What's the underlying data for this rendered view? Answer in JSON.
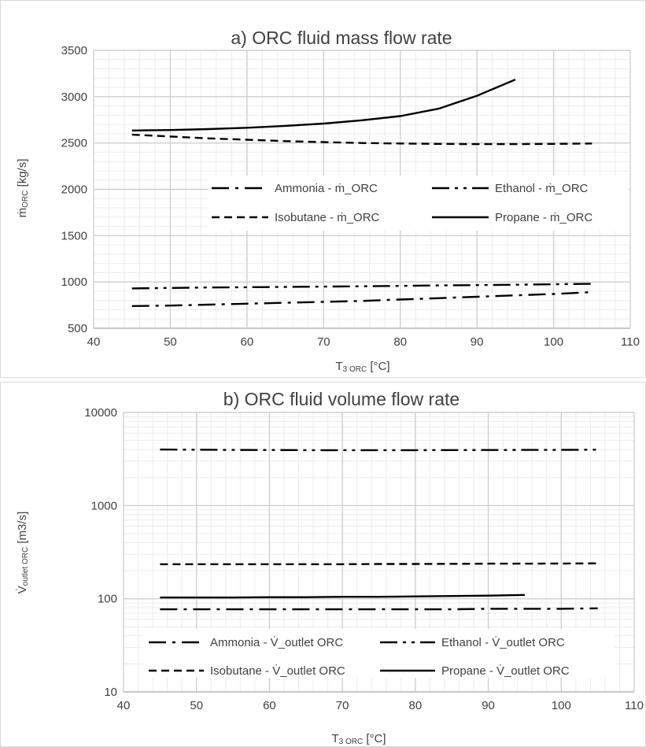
{
  "chart_data": [
    {
      "type": "line",
      "title": "a) ORC fluid mass flow rate",
      "xlabel": "T3 ORC [°C]",
      "xlabel_main": "T",
      "xlabel_sub": "3 ORC",
      "xlabel_unit": " [°C]",
      "ylabel": "ṁORC [kg/s]",
      "ylabel_main": "ṁ",
      "ylabel_sub": "ORC",
      "ylabel_unit": " [kg/s]",
      "xlim": [
        40,
        110
      ],
      "ylim": [
        500,
        3500
      ],
      "yscale": "linear",
      "x_ticks": [
        40,
        50,
        60,
        70,
        80,
        90,
        100,
        110
      ],
      "y_ticks": [
        500,
        1000,
        1500,
        2000,
        2500,
        3000,
        3500
      ],
      "grid": true,
      "legend_position": "middle",
      "series": [
        {
          "name": "Ammonia - ṁ_ORC",
          "style": "dash-dot",
          "x": [
            45,
            50,
            55,
            60,
            65,
            70,
            75,
            80,
            85,
            90,
            95,
            100,
            105
          ],
          "y": [
            740,
            745,
            755,
            765,
            775,
            785,
            795,
            810,
            825,
            840,
            855,
            870,
            890
          ]
        },
        {
          "name": "Ethanol - ṁ_ORC",
          "style": "dash-dot-dot",
          "x": [
            45,
            50,
            55,
            60,
            65,
            70,
            75,
            80,
            85,
            90,
            95,
            100,
            105
          ],
          "y": [
            930,
            935,
            940,
            943,
            946,
            950,
            953,
            957,
            962,
            966,
            970,
            975,
            980
          ]
        },
        {
          "name": "Isobutane - ṁ_ORC",
          "style": "dash",
          "x": [
            45,
            50,
            55,
            60,
            65,
            70,
            75,
            80,
            85,
            90,
            95,
            100,
            105
          ],
          "y": [
            2590,
            2570,
            2550,
            2535,
            2520,
            2510,
            2500,
            2495,
            2490,
            2488,
            2488,
            2490,
            2495
          ]
        },
        {
          "name": "Propane - ṁ_ORC",
          "style": "solid",
          "x": [
            45,
            50,
            55,
            60,
            65,
            70,
            75,
            80,
            85,
            90,
            95
          ],
          "y": [
            2635,
            2640,
            2650,
            2665,
            2685,
            2710,
            2745,
            2790,
            2870,
            3010,
            3185
          ]
        }
      ]
    },
    {
      "type": "line",
      "title": "b) ORC fluid volume flow rate",
      "xlabel": "T3 ORC [°C]",
      "xlabel_main": "T",
      "xlabel_sub": "3 ORC",
      "xlabel_unit": " [°C]",
      "ylabel": "V̇outlet ORC [m3/s]",
      "ylabel_main": "V̇",
      "ylabel_sub": "outlet ORC",
      "ylabel_unit": " [m3/s]",
      "xlim": [
        40,
        110
      ],
      "ylim": [
        10,
        10000
      ],
      "yscale": "log",
      "x_ticks": [
        40,
        50,
        60,
        70,
        80,
        90,
        100,
        110
      ],
      "y_ticks": [
        10,
        100,
        1000,
        10000
      ],
      "grid": true,
      "legend_position": "bottom",
      "series": [
        {
          "name": "Ammonia - V̇_outlet ORC",
          "style": "dash-dot",
          "x": [
            45,
            50,
            55,
            60,
            65,
            70,
            75,
            80,
            85,
            90,
            95,
            100,
            105
          ],
          "y": [
            77,
            77,
            77,
            77,
            77,
            77,
            77,
            77,
            77,
            78,
            78,
            78,
            79
          ]
        },
        {
          "name": "Ethanol - V̇_outlet ORC",
          "style": "dash-dot-dot",
          "x": [
            45,
            50,
            55,
            60,
            65,
            70,
            75,
            80,
            85,
            90,
            95,
            100,
            105
          ],
          "y": [
            4000,
            3980,
            3960,
            3950,
            3940,
            3940,
            3940,
            3940,
            3945,
            3950,
            3960,
            3970,
            3980
          ]
        },
        {
          "name": "Isobutane - V̇_outlet ORC",
          "style": "dash",
          "x": [
            45,
            50,
            55,
            60,
            65,
            70,
            75,
            80,
            85,
            90,
            95,
            100,
            105
          ],
          "y": [
            235,
            235,
            235,
            235,
            235,
            235,
            236,
            236,
            237,
            238,
            238,
            239,
            240
          ]
        },
        {
          "name": "Propane - V̇_outlet ORC",
          "style": "solid",
          "x": [
            45,
            50,
            55,
            60,
            65,
            70,
            75,
            80,
            85,
            90,
            95
          ],
          "y": [
            103,
            103,
            103,
            104,
            104,
            105,
            105,
            106,
            107,
            108,
            110
          ]
        }
      ]
    }
  ]
}
